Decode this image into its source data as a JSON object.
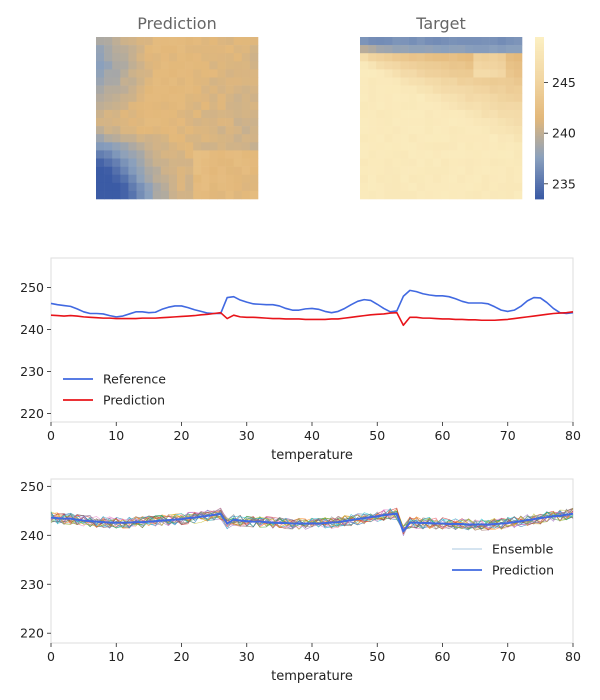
{
  "colors": {
    "reference": "#4169e1",
    "prediction_red": "#e8141a",
    "prediction_blue": "#4169e1",
    "spine": "#dddddd",
    "colormap": [
      "#3b5ba5",
      "#8aa0bd",
      "#e3b87a",
      "#f2d7a4",
      "#fcefc2"
    ]
  },
  "heatmaps": {
    "prediction_title": "Prediction",
    "target_title": "Target",
    "colorbar": {
      "min": 233.5,
      "max": 249.5,
      "ticks": [
        "235",
        "240",
        "245"
      ],
      "tick_values": [
        235,
        240,
        245
      ]
    }
  },
  "chart_data": [
    {
      "type": "heatmap",
      "title": "Prediction",
      "grid": "20x20",
      "value_range": [
        236,
        242
      ],
      "colormap": "blue-tan-cream"
    },
    {
      "type": "heatmap",
      "title": "Target",
      "grid": "20x20",
      "value_range": [
        239,
        249
      ],
      "colormap": "blue-tan-cream"
    },
    {
      "type": "line",
      "xlabel": "temperature",
      "ylabel": "",
      "xlim": [
        0,
        80
      ],
      "ylim": [
        218,
        257
      ],
      "x_ticks": [
        "0",
        "10",
        "20",
        "30",
        "40",
        "50",
        "60",
        "70",
        "80"
      ],
      "x_tick_values": [
        0,
        10,
        20,
        30,
        40,
        50,
        60,
        70,
        80
      ],
      "y_ticks": [
        "220",
        "230",
        "240",
        "250"
      ],
      "y_tick_values": [
        220,
        230,
        240,
        250
      ],
      "legend": "lower-left",
      "series": [
        {
          "name": "Reference",
          "x": [
            0,
            1,
            2,
            3,
            4,
            5,
            6,
            7,
            8,
            9,
            10,
            11,
            12,
            13,
            14,
            15,
            16,
            17,
            18,
            19,
            20,
            21,
            22,
            23,
            24,
            25,
            26,
            27,
            28,
            29,
            30,
            31,
            32,
            33,
            34,
            35,
            36,
            37,
            38,
            39,
            40,
            41,
            42,
            43,
            44,
            45,
            46,
            47,
            48,
            49,
            50,
            51,
            52,
            53,
            54,
            55,
            56,
            57,
            58,
            59,
            60,
            61,
            62,
            63,
            64,
            65,
            66,
            67,
            68,
            69,
            70,
            71,
            72,
            73,
            74,
            75,
            76,
            77,
            78,
            79,
            80
          ],
          "y": [
            246.2,
            245.9,
            245.7,
            245.5,
            244.9,
            244.2,
            243.8,
            243.8,
            243.7,
            243.3,
            243.0,
            243.2,
            243.7,
            244.2,
            244.2,
            244.0,
            244.1,
            244.8,
            245.3,
            245.6,
            245.6,
            245.2,
            244.7,
            244.3,
            243.9,
            243.8,
            243.8,
            247.6,
            247.8,
            247.0,
            246.5,
            246.1,
            246.0,
            245.9,
            245.9,
            245.6,
            245.0,
            244.6,
            244.6,
            244.9,
            245.0,
            244.8,
            244.3,
            244.0,
            244.3,
            245.0,
            245.9,
            246.7,
            247.1,
            246.9,
            246.0,
            245.0,
            244.2,
            244.4,
            247.9,
            249.3,
            249.0,
            248.5,
            248.2,
            248.0,
            248.0,
            247.8,
            247.3,
            246.7,
            246.3,
            246.3,
            246.3,
            246.1,
            245.4,
            244.6,
            244.3,
            244.6,
            245.5,
            246.8,
            247.6,
            247.5,
            246.4,
            245.0,
            244.0,
            243.8,
            244.0
          ]
        },
        {
          "name": "Prediction",
          "x": [
            0,
            1,
            2,
            3,
            4,
            5,
            6,
            7,
            8,
            9,
            10,
            11,
            12,
            13,
            14,
            15,
            16,
            17,
            18,
            19,
            20,
            21,
            22,
            23,
            24,
            25,
            26,
            27,
            28,
            29,
            30,
            31,
            32,
            33,
            34,
            35,
            36,
            37,
            38,
            39,
            40,
            41,
            42,
            43,
            44,
            45,
            46,
            47,
            48,
            49,
            50,
            51,
            52,
            53,
            54,
            55,
            56,
            57,
            58,
            59,
            60,
            61,
            62,
            63,
            64,
            65,
            66,
            67,
            68,
            69,
            70,
            71,
            72,
            73,
            74,
            75,
            76,
            77,
            78,
            79,
            80
          ],
          "y": [
            243.4,
            243.3,
            243.2,
            243.3,
            243.2,
            243.0,
            242.9,
            242.8,
            242.7,
            242.7,
            242.6,
            242.6,
            242.6,
            242.6,
            242.7,
            242.7,
            242.7,
            242.8,
            242.9,
            243.0,
            243.1,
            243.2,
            243.3,
            243.5,
            243.6,
            243.8,
            244.0,
            242.6,
            243.4,
            243.0,
            242.9,
            242.9,
            242.8,
            242.7,
            242.6,
            242.6,
            242.5,
            242.5,
            242.5,
            242.4,
            242.4,
            242.4,
            242.4,
            242.5,
            242.5,
            242.7,
            242.9,
            243.1,
            243.3,
            243.5,
            243.6,
            243.7,
            243.9,
            244.0,
            241.0,
            242.9,
            242.9,
            242.7,
            242.7,
            242.6,
            242.5,
            242.5,
            242.4,
            242.4,
            242.3,
            242.3,
            242.2,
            242.2,
            242.2,
            242.3,
            242.4,
            242.6,
            242.8,
            243.0,
            243.2,
            243.4,
            243.6,
            243.8,
            243.9,
            244.0,
            244.2
          ]
        }
      ]
    },
    {
      "type": "line",
      "xlabel": "temperature",
      "ylabel": "",
      "xlim": [
        0,
        80
      ],
      "ylim": [
        218,
        251.5
      ],
      "x_ticks": [
        "0",
        "10",
        "20",
        "30",
        "40",
        "50",
        "60",
        "70",
        "80"
      ],
      "x_tick_values": [
        0,
        10,
        20,
        30,
        40,
        50,
        60,
        70,
        80
      ],
      "y_ticks": [
        "220",
        "230",
        "240",
        "250"
      ],
      "y_tick_values": [
        220,
        230,
        240,
        250
      ],
      "legend": "center-right",
      "ensemble_members": 20,
      "ensemble_spread": 1.2,
      "series": [
        {
          "name": "Ensemble",
          "description_values": "20 thin members around Prediction"
        },
        {
          "name": "Prediction",
          "x": [
            0,
            1,
            2,
            3,
            4,
            5,
            6,
            7,
            8,
            9,
            10,
            11,
            12,
            13,
            14,
            15,
            16,
            17,
            18,
            19,
            20,
            21,
            22,
            23,
            24,
            25,
            26,
            27,
            28,
            29,
            30,
            31,
            32,
            33,
            34,
            35,
            36,
            37,
            38,
            39,
            40,
            41,
            42,
            43,
            44,
            45,
            46,
            47,
            48,
            49,
            50,
            51,
            52,
            53,
            54,
            55,
            56,
            57,
            58,
            59,
            60,
            61,
            62,
            63,
            64,
            65,
            66,
            67,
            68,
            69,
            70,
            71,
            72,
            73,
            74,
            75,
            76,
            77,
            78,
            79,
            80
          ],
          "y": [
            243.6,
            243.5,
            243.4,
            243.4,
            243.2,
            243.0,
            242.9,
            242.8,
            242.7,
            242.6,
            242.6,
            242.6,
            242.6,
            242.7,
            242.7,
            242.8,
            242.9,
            243.0,
            243.1,
            243.2,
            243.3,
            243.5,
            243.6,
            243.8,
            244.0,
            244.2,
            244.4,
            242.4,
            243.2,
            243.0,
            242.9,
            242.8,
            242.8,
            242.7,
            242.6,
            242.5,
            242.5,
            242.4,
            242.4,
            242.4,
            242.4,
            242.4,
            242.5,
            242.6,
            242.7,
            242.9,
            243.1,
            243.3,
            243.5,
            243.7,
            243.9,
            244.1,
            244.3,
            244.4,
            240.8,
            242.6,
            242.6,
            242.5,
            242.5,
            242.4,
            242.4,
            242.3,
            242.3,
            242.3,
            242.2,
            242.2,
            242.2,
            242.2,
            242.3,
            242.4,
            242.5,
            242.7,
            242.9,
            243.1,
            243.3,
            243.5,
            243.7,
            243.9,
            244.0,
            244.2,
            244.4
          ]
        }
      ]
    }
  ]
}
